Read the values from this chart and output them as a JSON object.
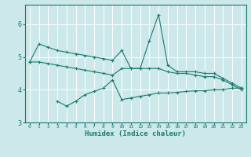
{
  "xlabel": "Humidex (Indice chaleur)",
  "bg_color": "#cce8ea",
  "grid_color": "#ffffff",
  "line_color": "#1a7a6e",
  "xlim": [
    -0.5,
    23.5
  ],
  "ylim": [
    3.0,
    6.6
  ],
  "yticks": [
    3,
    4,
    5,
    6
  ],
  "xticks": [
    0,
    1,
    2,
    3,
    4,
    5,
    6,
    7,
    8,
    9,
    10,
    11,
    12,
    13,
    14,
    15,
    16,
    17,
    18,
    19,
    20,
    21,
    22,
    23
  ],
  "line1_x": [
    0,
    1,
    2,
    3,
    4,
    5,
    6,
    7,
    8,
    9,
    10,
    11,
    12,
    13,
    14,
    15,
    16,
    17,
    18,
    19,
    20,
    21,
    22,
    23
  ],
  "line1_y": [
    4.85,
    5.4,
    5.3,
    5.2,
    5.15,
    5.1,
    5.05,
    5.0,
    4.95,
    4.9,
    5.2,
    4.65,
    4.65,
    5.5,
    6.3,
    4.75,
    4.55,
    4.55,
    4.55,
    4.5,
    4.5,
    4.35,
    4.2,
    4.05
  ],
  "line2_x": [
    0,
    1,
    2,
    3,
    4,
    5,
    6,
    7,
    8,
    9,
    10,
    11,
    12,
    13,
    14,
    15,
    16,
    17,
    18,
    19,
    20,
    21,
    22,
    23
  ],
  "line2_y": [
    4.85,
    4.85,
    4.8,
    4.75,
    4.7,
    4.65,
    4.6,
    4.55,
    4.5,
    4.45,
    4.65,
    4.65,
    4.65,
    4.65,
    4.65,
    4.55,
    4.5,
    4.5,
    4.45,
    4.4,
    4.4,
    4.3,
    4.15,
    4.0
  ],
  "line3_x": [
    3,
    4,
    5,
    6,
    7,
    8,
    9,
    10,
    11,
    12,
    13,
    14,
    15,
    16,
    17,
    18,
    19,
    20,
    21,
    22,
    23
  ],
  "line3_y": [
    3.65,
    3.5,
    3.65,
    3.85,
    3.95,
    4.05,
    4.3,
    3.7,
    3.75,
    3.8,
    3.85,
    3.9,
    3.9,
    3.92,
    3.95,
    3.97,
    3.97,
    4.0,
    4.0,
    4.05,
    4.05
  ]
}
